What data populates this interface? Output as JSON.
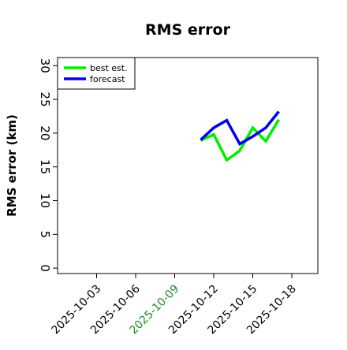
{
  "chart_data": {
    "type": "line",
    "title": "RMS error",
    "y_label": "RMS error (km)",
    "x": [
      "2025-10-11",
      "2025-10-12",
      "2025-10-13",
      "2025-10-14",
      "2025-10-15",
      "2025-10-16",
      "2025-10-17"
    ],
    "series": [
      {
        "name": "best est.",
        "color": "#00ee00",
        "values": [
          18.9,
          19.8,
          16.0,
          17.4,
          20.8,
          18.8,
          22.0
        ]
      },
      {
        "name": "forecast",
        "color": "#0000ee",
        "values": [
          19.0,
          20.8,
          21.9,
          18.4,
          19.5,
          20.8,
          23.2
        ]
      }
    ],
    "xlim": [
      "2025-09-30",
      "2025-10-20"
    ],
    "xticks": [
      "2025-10-03",
      "2025-10-06",
      "2025-10-09",
      "2025-10-12",
      "2025-10-15",
      "2025-10-18"
    ],
    "xtick_colors": [
      "#000000",
      "#000000",
      "#228b22",
      "#000000",
      "#000000",
      "#000000"
    ],
    "ylim": [
      -0.8,
      31.2
    ],
    "yticks": [
      0,
      5,
      10,
      15,
      20,
      25,
      30
    ],
    "legend": "upper left"
  }
}
